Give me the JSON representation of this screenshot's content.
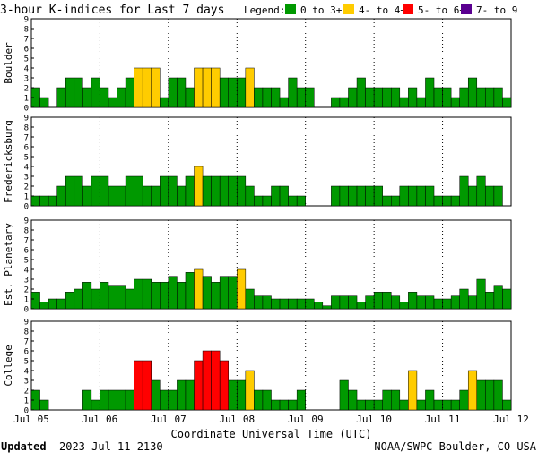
{
  "header": {
    "title": "3-hour K-indices for Last 7 days",
    "legend_label": "Legend:",
    "legend": [
      {
        "label": "0 to 3+",
        "color": "#009900"
      },
      {
        "label": "4- to 4+",
        "color": "#ffcc00"
      },
      {
        "label": "5- to 6+",
        "color": "#ff0000"
      },
      {
        "label": "7- to 9",
        "color": "#5a0090"
      }
    ]
  },
  "footer": {
    "updated_label": "Updated",
    "updated_value": "2023 Jul 11 2130",
    "source": "NOAA/SWPC Boulder, CO USA"
  },
  "chart_data": {
    "type": "bar",
    "xlabel": "Coordinate Universal Time (UTC)",
    "x_ticks": [
      "Jul 05",
      "Jul 06",
      "Jul 07",
      "Jul 08",
      "Jul 09",
      "Jul 10",
      "Jul 11",
      "Jul 12"
    ],
    "ylim": [
      0,
      9
    ],
    "y_ticks": [
      "0",
      "1",
      "2",
      "3",
      "4",
      "5",
      "6",
      "7",
      "8",
      "9"
    ],
    "bins_per_day": 8,
    "days": 7,
    "thresholds": [
      {
        "min": 0,
        "max": 3.999,
        "color": "#009900"
      },
      {
        "min": 4,
        "max": 4.999,
        "color": "#ffcc00"
      },
      {
        "min": 5,
        "max": 6.999,
        "color": "#ff0000"
      },
      {
        "min": 7,
        "max": 9,
        "color": "#5a0090"
      }
    ],
    "panels": [
      {
        "name": "Boulder",
        "values": [
          2,
          1,
          0,
          2,
          3,
          3,
          2,
          3,
          2,
          1,
          2,
          3,
          4,
          4,
          4,
          1,
          3,
          3,
          2,
          4,
          4,
          4,
          3,
          3,
          3,
          4,
          2,
          2,
          2,
          1,
          3,
          2,
          2,
          0,
          0,
          1,
          1,
          2,
          3,
          2,
          2,
          2,
          2,
          1,
          2,
          1,
          3,
          2,
          2,
          1,
          2,
          3,
          2,
          2,
          2,
          1,
          0
        ]
      },
      {
        "name": "Fredericksburg",
        "values": [
          1,
          1,
          1,
          2,
          3,
          3,
          2,
          3,
          3,
          2,
          2,
          3,
          3,
          2,
          2,
          3,
          3,
          2,
          3,
          4,
          3,
          3,
          3,
          3,
          3,
          2,
          1,
          1,
          2,
          2,
          1,
          1,
          0,
          0,
          0,
          2,
          2,
          2,
          2,
          2,
          2,
          1,
          1,
          2,
          2,
          2,
          2,
          1,
          1,
          1,
          3,
          2,
          3,
          2,
          2,
          0,
          0
        ]
      },
      {
        "name": "Est. Planetary",
        "values": [
          1.7,
          0.7,
          1,
          1,
          1.7,
          2,
          2.7,
          2,
          2.7,
          2.3,
          2.3,
          2,
          3,
          3,
          2.7,
          2.7,
          3.3,
          2.7,
          3.7,
          4,
          3.3,
          2.7,
          3.3,
          3.3,
          4,
          2,
          1.3,
          1.3,
          1,
          1,
          1,
          1,
          1,
          0.7,
          0.3,
          1.3,
          1.3,
          1.3,
          0.7,
          1.3,
          1.7,
          1.7,
          1.3,
          0.7,
          1.7,
          1.3,
          1.3,
          1,
          1,
          1.3,
          2,
          1.3,
          3,
          1.7,
          2.3,
          2,
          1.7
        ]
      },
      {
        "name": "College",
        "values": [
          2,
          1,
          0,
          0,
          0,
          0,
          2,
          1,
          2,
          2,
          2,
          2,
          5,
          5,
          3,
          2,
          2,
          3,
          3,
          5,
          6,
          6,
          5,
          3,
          3,
          4,
          2,
          2,
          1,
          1,
          1,
          2,
          0,
          0,
          0,
          0,
          3,
          2,
          1,
          1,
          1,
          2,
          2,
          1,
          4,
          1,
          2,
          1,
          1,
          1,
          2,
          4,
          3,
          3,
          3,
          1,
          0
        ]
      }
    ]
  }
}
